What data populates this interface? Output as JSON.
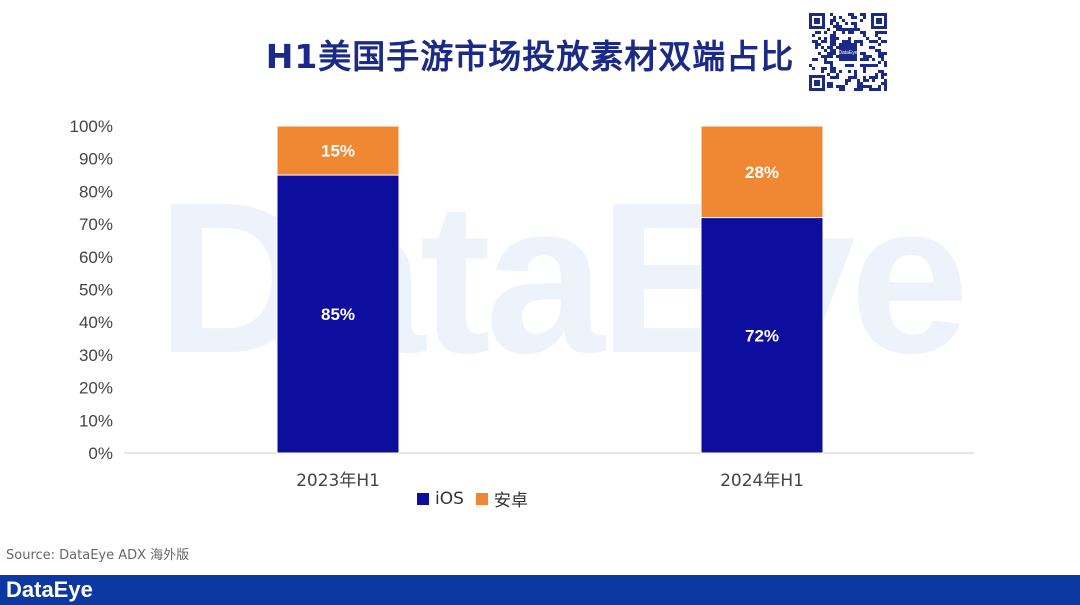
{
  "title": "H1美国手游市场投放素材双端占比",
  "watermark": "DataEye",
  "source": "Source: DataEye ADX 海外版",
  "footer_brand": "DataEye",
  "qr_label": "DataEye",
  "colors": {
    "ios": "#0d0d9e",
    "android": "#f08732",
    "footer": "#0c39a1",
    "title": "#1b2a86"
  },
  "chart_data": {
    "type": "bar",
    "stacked": true,
    "categories": [
      "2023年H1",
      "2024年H1"
    ],
    "series": [
      {
        "name": "iOS",
        "values": [
          85,
          72
        ],
        "labels": [
          "85%",
          "72%"
        ],
        "color": "#0d0d9e"
      },
      {
        "name": "安卓",
        "values": [
          15,
          28
        ],
        "labels": [
          "15%",
          "28%"
        ],
        "color": "#f08732"
      }
    ],
    "yticks": [
      "0%",
      "10%",
      "20%",
      "30%",
      "40%",
      "50%",
      "60%",
      "70%",
      "80%",
      "90%",
      "100%"
    ],
    "ylim": [
      0,
      100
    ],
    "grid": false,
    "legend": "bottom"
  }
}
